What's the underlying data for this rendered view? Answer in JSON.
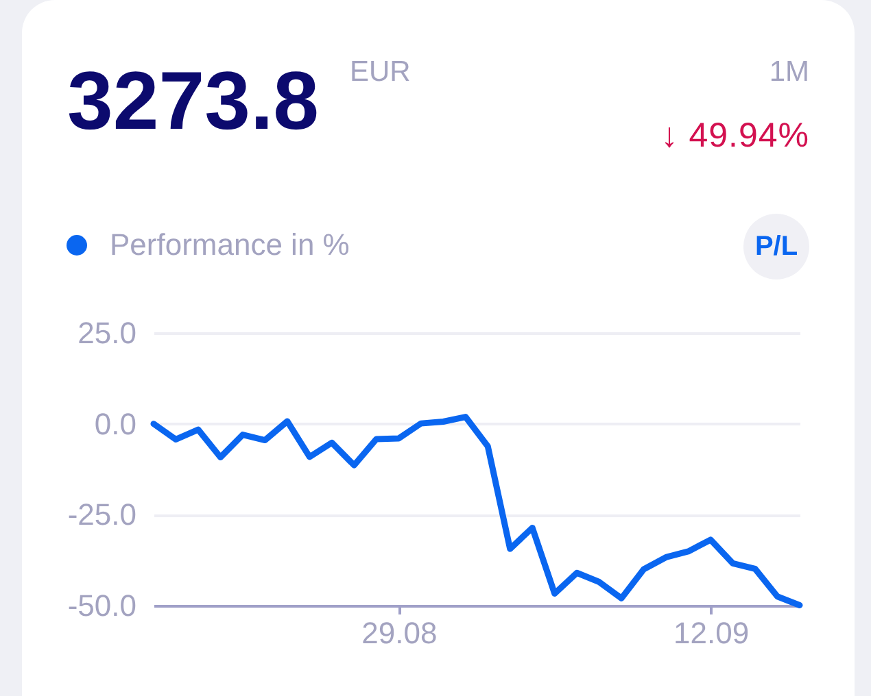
{
  "chart_data": {
    "type": "line",
    "title": "3273.8",
    "subtitle": "EUR",
    "annotations": [
      "1M",
      "↓ 49.94%",
      "P/L"
    ],
    "x": [
      "--08-18",
      "--08-19",
      "--08-20",
      "--08-21",
      "--08-22",
      "--08-23",
      "--08-24",
      "--08-25",
      "--08-26",
      "--08-27",
      "--08-28",
      "--08-29",
      "--08-30",
      "--08-31",
      "--09-01",
      "--09-02",
      "--09-03",
      "--09-04",
      "--09-05",
      "--09-06",
      "--09-07",
      "--09-08",
      "--09-09",
      "--09-10",
      "--09-11",
      "--09-12",
      "--09-13",
      "--09-14",
      "--09-15",
      "--09-16"
    ],
    "series": [
      {
        "name": "Performance in %",
        "color": "#0a66f0",
        "values": [
          0,
          -4.3,
          -1.6,
          -9.2,
          -3.0,
          -4.5,
          0.7,
          -9.1,
          -5.2,
          -11.4,
          -4.2,
          -4.0,
          0.1,
          0.6,
          1.9,
          -6.2,
          -34.4,
          -28.6,
          -46.7,
          -41.0,
          -43.5,
          -48.0,
          -40.0,
          -36.7,
          -35.1,
          -31.9,
          -38.4,
          -39.9,
          -47.5,
          -49.9
        ]
      }
    ],
    "xlim": [
      "--08-18",
      "--09-16"
    ],
    "xticks": [
      {
        "value": "--08-29",
        "label": "29.08"
      },
      {
        "value": "--09-12",
        "label": "12.09"
      }
    ],
    "ylim": [
      -50,
      25
    ],
    "yticks": [
      {
        "value": 25,
        "label": "25.0"
      },
      {
        "value": 0,
        "label": "0.0"
      },
      {
        "value": -25,
        "label": "-25.0"
      },
      {
        "value": -50,
        "label": "-50.0"
      }
    ],
    "grid": "y",
    "legend": "top left"
  }
}
